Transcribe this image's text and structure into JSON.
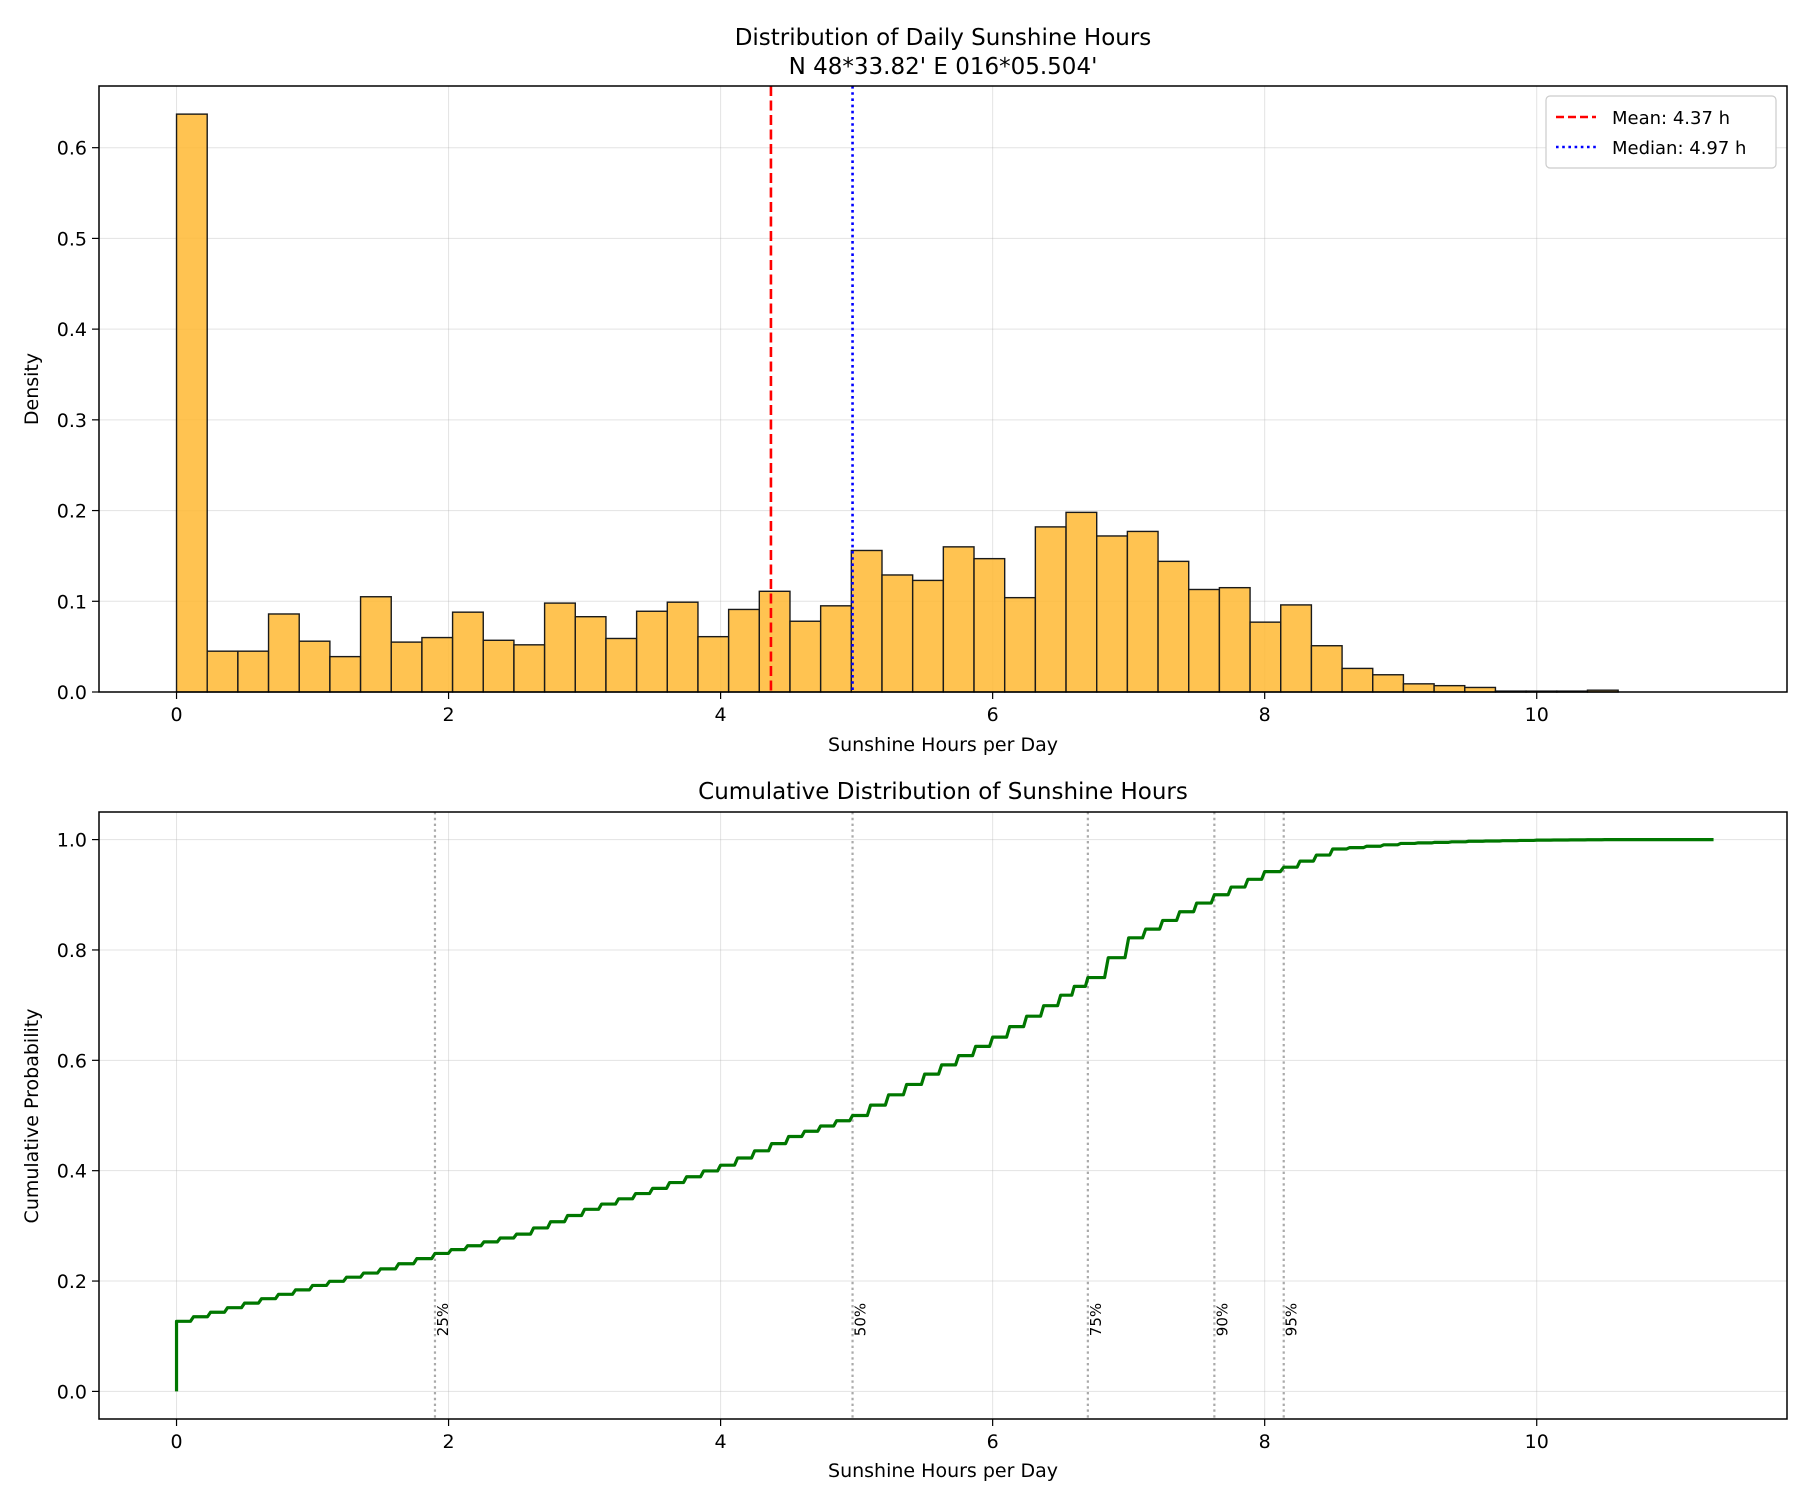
{
  "chart_data": [
    {
      "type": "bar",
      "subtype": "histogram",
      "title": "Distribution of Daily Sunshine Hours",
      "subtitle": "N 48*33.82'  E 016*05.504'",
      "xlabel": "Sunshine Hours per Day",
      "ylabel": "Density",
      "xlim": [
        -0.57,
        11.84
      ],
      "ylim": [
        0,
        0.668
      ],
      "xticks": [
        0,
        2,
        4,
        6,
        8,
        10
      ],
      "yticks": [
        0.0,
        0.1,
        0.2,
        0.3,
        0.4,
        0.5,
        0.6
      ],
      "grid": true,
      "bar_color": "#FFB833",
      "bin_edges_start": 0.0,
      "bin_width": 0.2255,
      "values": [
        0.637,
        0.045,
        0.045,
        0.086,
        0.056,
        0.039,
        0.105,
        0.055,
        0.06,
        0.088,
        0.057,
        0.052,
        0.098,
        0.083,
        0.059,
        0.089,
        0.099,
        0.061,
        0.091,
        0.111,
        0.078,
        0.095,
        0.156,
        0.129,
        0.123,
        0.16,
        0.147,
        0.104,
        0.182,
        0.198,
        0.172,
        0.177,
        0.144,
        0.113,
        0.115,
        0.077,
        0.096,
        0.051,
        0.026,
        0.019,
        0.009,
        0.007,
        0.005,
        0.001,
        0.001,
        0.001,
        0.002
      ],
      "reference_lines": [
        {
          "label": "Mean: 4.37 h",
          "x": 4.37,
          "color": "#FF0000",
          "style": "dashed"
        },
        {
          "label": "Median: 4.97 h",
          "x": 4.97,
          "color": "#0000FF",
          "style": "dotted"
        }
      ],
      "legend_position": "top-right"
    },
    {
      "type": "line",
      "subtype": "step",
      "title": "Cumulative Distribution of Sunshine Hours",
      "xlabel": "Sunshine Hours per Day",
      "ylabel": "Cumulative Probability",
      "xlim": [
        -0.57,
        11.84
      ],
      "ylim": [
        -0.05,
        1.05
      ],
      "xticks": [
        0,
        2,
        4,
        6,
        8,
        10
      ],
      "yticks": [
        0.0,
        0.2,
        0.4,
        0.6,
        0.8,
        1.0
      ],
      "grid": true,
      "line_color": "#007700",
      "start": {
        "x": 0,
        "y": 0.0
      },
      "jump_at_zero": 0.127,
      "x": [
        0.0,
        0.5,
        1.0,
        1.5,
        1.9,
        2.5,
        3.0,
        3.5,
        4.0,
        4.5,
        4.97,
        5.5,
        6.0,
        6.5,
        6.7,
        7.0,
        7.5,
        7.63,
        8.0,
        8.14,
        8.5,
        9.0,
        9.5,
        10.0,
        10.5,
        11.3
      ],
      "y": [
        0.127,
        0.16,
        0.192,
        0.222,
        0.25,
        0.285,
        0.33,
        0.368,
        0.41,
        0.462,
        0.5,
        0.575,
        0.642,
        0.718,
        0.75,
        0.822,
        0.885,
        0.9,
        0.942,
        0.95,
        0.983,
        0.993,
        0.997,
        0.999,
        1.0,
        1.0
      ],
      "percentile_lines": [
        {
          "label": "25%",
          "x": 1.9
        },
        {
          "label": "50%",
          "x": 4.97
        },
        {
          "label": "75%",
          "x": 6.7
        },
        {
          "label": "90%",
          "x": 7.63
        },
        {
          "label": "95%",
          "x": 8.14
        }
      ],
      "percentile_color": "#AAAAAA"
    }
  ]
}
